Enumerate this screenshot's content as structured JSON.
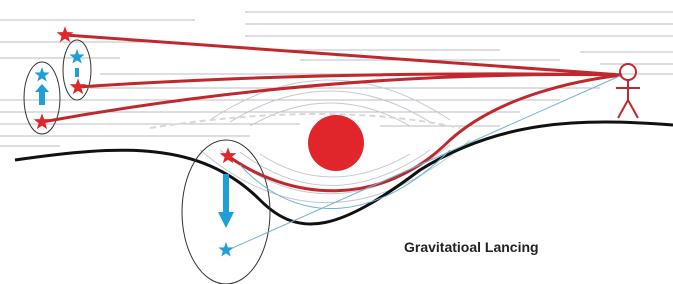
{
  "caption": "Gravitatioal Lancing"
}
